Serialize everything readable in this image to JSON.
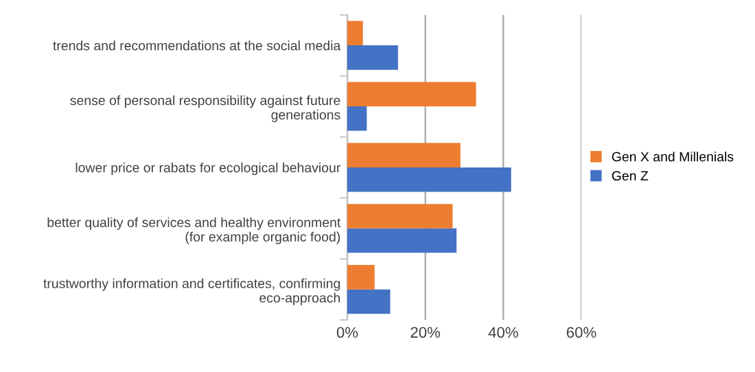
{
  "chart_data": {
    "type": "bar",
    "orientation": "horizontal",
    "categories": [
      "trends and recommendations at the social media",
      "sense of personal responsibility against future\ngenerations",
      "lower price or rabats for ecological behaviour",
      "better quality of services and healthy environment\n(for example organic food)",
      "trustworthy information and certificates, confirming\neco-approach"
    ],
    "series": [
      {
        "name": "Gen Z",
        "color": "#4472c4",
        "values": [
          13,
          5,
          42,
          28,
          11
        ]
      },
      {
        "name": "Gen X and Millenials",
        "color": "#ed7d31",
        "values": [
          4,
          33,
          29,
          27,
          7
        ]
      }
    ],
    "xlim": [
      0,
      60
    ],
    "xticks": [
      {
        "value": 0,
        "label": "0%"
      },
      {
        "value": 20,
        "label": "20%"
      },
      {
        "value": 40,
        "label": "40%"
      },
      {
        "value": 60,
        "label": "60%"
      }
    ],
    "grid": "x",
    "legend": "right"
  }
}
